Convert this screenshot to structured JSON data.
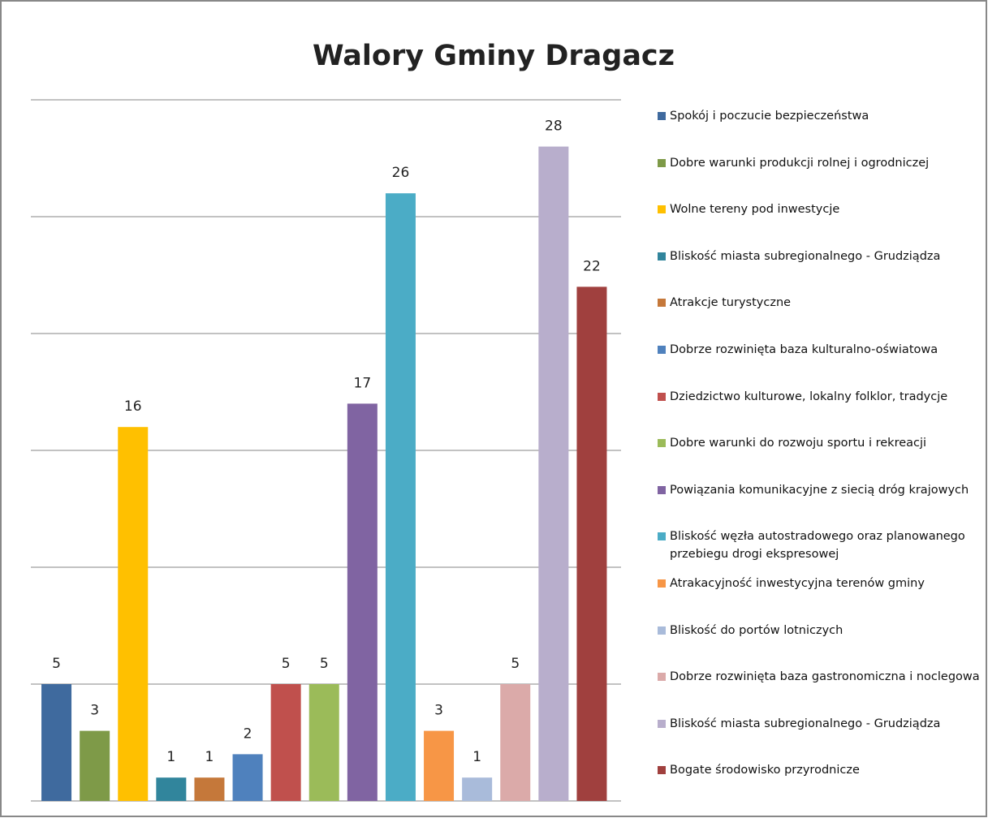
{
  "chart_data": {
    "type": "bar",
    "title": "Walory Gminy Dragacz",
    "categories": [
      "Spokój i poczucie bezpieczeństwa",
      "Dobre warunki produkcji rolnej i ogrodniczej",
      "Wolne tereny pod inwestycje",
      "Bliskość miasta subregionalnego - Grudziądza",
      "Atrakcje turystyczne",
      "Dobrze rozwinięta baza kulturalno-oświatowa",
      "Dziedzictwo kulturowe, lokalny folklor, tradycje",
      "Dobre warunki do rozwoju sportu i rekreacji",
      "Powiązania komunikacyjne z siecią dróg krajowych",
      "Bliskość węzła autostradowego oraz planowanego przebiegu drogi ekspresowej",
      "Atrakacyjność inwestycyjna terenów gminy",
      "Bliskość do portów lotniczych",
      "Dobrze rozwinięta baza gastronomiczna i noclegowa",
      "Bliskość miasta subregionalnego - Grudziądza",
      "Bogate środowisko przyrodnicze"
    ],
    "values": [
      5,
      3,
      16,
      1,
      1,
      2,
      5,
      5,
      17,
      26,
      3,
      1,
      5,
      28,
      22
    ],
    "colors": [
      "#3f6a9e",
      "#7e9a48",
      "#ffc000",
      "#31859c",
      "#c5783a",
      "#4f81bd",
      "#c0504d",
      "#9bbb59",
      "#8064a2",
      "#4bacc6",
      "#f79646",
      "#a9bbda",
      "#dbaaa9",
      "#b8aecc",
      "#a0403e"
    ],
    "ylim": [
      0,
      30
    ],
    "yticks": [
      0,
      5,
      10,
      15,
      20,
      25,
      30
    ],
    "grid": true,
    "legend": "right"
  }
}
